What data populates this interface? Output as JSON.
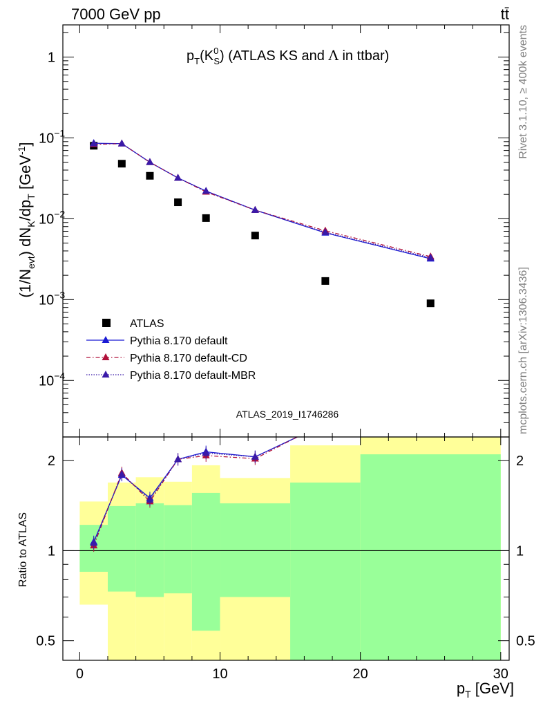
{
  "header": {
    "energy_label": "7000 GeV pp",
    "process_label": "tt̄"
  },
  "side_labels": {
    "rivet": "Rivet 3.1.10, ≥ 400k events",
    "mcplots": "mcplots.cern.ch [arXiv:1306.3436]"
  },
  "chart_data": [
    {
      "type": "line",
      "panel": "main",
      "title": "pT(K0S) (ATLAS KS and Λ in ttbar)",
      "analysis_label": "ATLAS_2019_I1746286",
      "ylabel": "(1/Nevt) dNK/dpT [GeV-1]",
      "yscale": "log",
      "xlim": [
        -1.2,
        30.6
      ],
      "ylim": [
        2e-05,
        2.5
      ],
      "y_ticks": [
        {
          "value": 1,
          "label": "1"
        },
        {
          "value": 0.1,
          "label": "10",
          "exp": "−1"
        },
        {
          "value": 0.01,
          "label": "10",
          "exp": "−2"
        },
        {
          "value": 0.001,
          "label": "10",
          "exp": "−3"
        },
        {
          "value": 0.0001,
          "label": "10",
          "exp": "−4"
        }
      ],
      "legend_position": "bottom-left",
      "series": [
        {
          "name": "ATLAS",
          "style": "markers",
          "marker": "square",
          "color": "#000000",
          "x": [
            1,
            3,
            5,
            7,
            9,
            12.5,
            17.5,
            25
          ],
          "y": [
            0.08,
            0.048,
            0.034,
            0.016,
            0.0102,
            0.0062,
            0.0017,
            0.0009
          ]
        },
        {
          "name": "Pythia 8.170 default",
          "style": "solid",
          "marker": "triangle",
          "color": "#1a1ad4",
          "x": [
            1,
            3,
            5,
            7,
            9,
            12.5,
            17.5,
            25
          ],
          "y": [
            0.086,
            0.085,
            0.05,
            0.032,
            0.022,
            0.0128,
            0.0067,
            0.0032
          ]
        },
        {
          "name": "Pythia 8.170 default-CD",
          "style": "dashdot",
          "marker": "triangle",
          "color": "#b0103a",
          "x": [
            1,
            3,
            5,
            7,
            9,
            12.5,
            17.5,
            25
          ],
          "y": [
            0.083,
            0.085,
            0.05,
            0.032,
            0.0215,
            0.0128,
            0.0071,
            0.0034
          ]
        },
        {
          "name": "Pythia 8.170 default-MBR",
          "style": "dotted",
          "marker": "triangle",
          "color": "#3a1aa8",
          "x": [
            1,
            3,
            5,
            7,
            9,
            12.5,
            17.5,
            25
          ],
          "y": [
            0.085,
            0.085,
            0.05,
            0.032,
            0.022,
            0.0128,
            0.0068,
            0.0033
          ]
        }
      ]
    },
    {
      "type": "line",
      "panel": "ratio",
      "ylabel": "Ratio to ATLAS",
      "xlabel": "pT [GeV]",
      "yscale": "log",
      "xlim": [
        -1.2,
        30.6
      ],
      "ylim": [
        0.43,
        2.4
      ],
      "x_ticks": [
        0,
        10,
        20,
        30
      ],
      "y_ticks": [
        {
          "value": 2,
          "label": "2"
        },
        {
          "value": 1,
          "label": "1"
        },
        {
          "value": 0.5,
          "label": "0.5"
        }
      ],
      "bands": {
        "bins": [
          [
            0,
            2
          ],
          [
            2,
            4
          ],
          [
            4,
            6
          ],
          [
            6,
            8
          ],
          [
            8,
            10
          ],
          [
            10,
            15
          ],
          [
            15,
            20
          ],
          [
            20,
            30
          ]
        ],
        "outer": {
          "color": "#ffff99",
          "low": [
            0.66,
            0.43,
            0.43,
            0.43,
            0.43,
            0.43,
            0.43,
            0.43
          ],
          "high": [
            1.46,
            1.69,
            1.76,
            1.7,
            1.93,
            1.75,
            2.25,
            2.4
          ]
        },
        "inner": {
          "color": "#99ff99",
          "low": [
            0.85,
            0.73,
            0.7,
            0.72,
            0.54,
            0.7,
            0.43,
            0.43
          ],
          "high": [
            1.22,
            1.41,
            1.44,
            1.42,
            1.56,
            1.44,
            1.69,
            2.1
          ]
        }
      },
      "reference_line": 1,
      "series": [
        {
          "name": "Pythia 8.170 default",
          "style": "solid",
          "color": "#1a1ad4",
          "x": [
            1,
            3,
            5,
            7,
            9,
            12.5,
            15.5
          ],
          "y": [
            1.07,
            1.79,
            1.5,
            2.02,
            2.14,
            2.06,
            2.45
          ]
        },
        {
          "name": "Pythia 8.170 default-CD",
          "style": "dashdot",
          "color": "#b0103a",
          "x": [
            1,
            3,
            5,
            7,
            9,
            12.5,
            15.5
          ],
          "y": [
            1.04,
            1.82,
            1.46,
            2.02,
            2.08,
            2.03,
            2.45
          ]
        },
        {
          "name": "Pythia 8.170 default-MBR",
          "style": "dotted",
          "color": "#3a1aa8",
          "x": [
            1,
            3,
            5,
            7,
            9,
            12.5,
            15.5
          ],
          "y": [
            1.06,
            1.8,
            1.48,
            2.02,
            2.12,
            2.06,
            2.45
          ]
        }
      ]
    }
  ]
}
